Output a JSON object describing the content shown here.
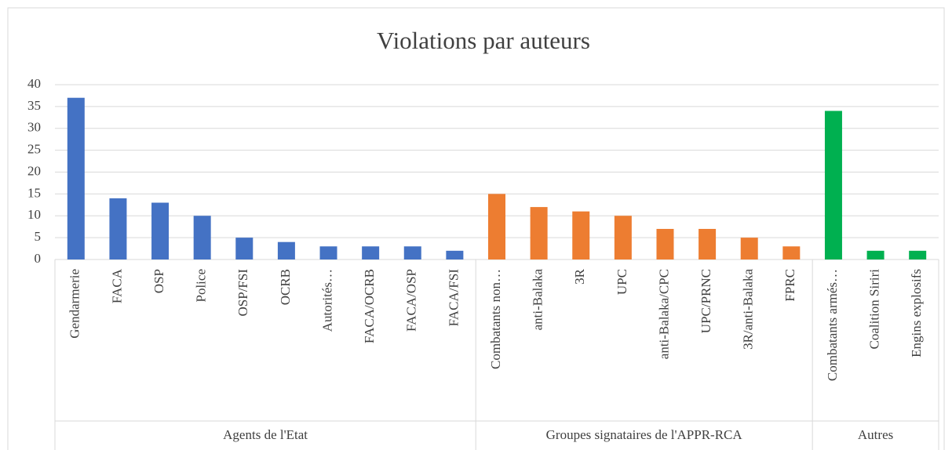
{
  "chart_data": {
    "type": "bar",
    "title": "Violations par auteurs",
    "groups": [
      {
        "label": "Agents de l'Etat",
        "color": "#4472c4",
        "categories": [
          "Gendarmerie",
          "FACA",
          "OSP",
          "Police",
          "OSP/FSI",
          "OCRB",
          "Autorités…",
          "FACA/OCRB",
          "FACA/OSP",
          "FACA/FSI"
        ],
        "values": [
          37,
          14,
          13,
          10,
          5,
          4,
          3,
          3,
          3,
          2
        ]
      },
      {
        "label": "Groupes signataires de l'APPR-RCA",
        "color": "#ed7d31",
        "categories": [
          "Combatants non…",
          "anti-Balaka",
          "3R",
          "UPC",
          "anti-Balaka/CPC",
          "UPC/PRNC",
          "3R/anti-Balaka",
          "FPRC"
        ],
        "values": [
          15,
          12,
          11,
          10,
          7,
          7,
          5,
          3
        ]
      },
      {
        "label": "Autres",
        "color": "#00b050",
        "categories": [
          "Combatants armés…",
          "Coalition Siriri",
          "Engins explosifs"
        ],
        "values": [
          34,
          2,
          2
        ]
      }
    ],
    "ylim": [
      0,
      40
    ],
    "yticks": [
      0,
      5,
      10,
      15,
      20,
      25,
      30,
      35,
      40
    ],
    "grid": true
  }
}
